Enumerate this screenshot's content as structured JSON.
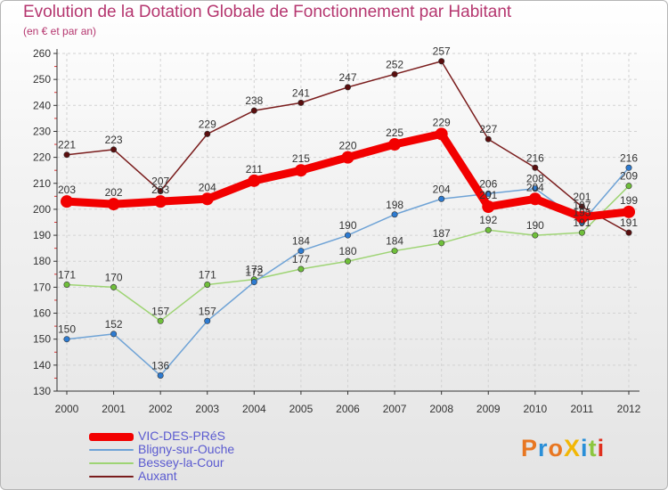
{
  "chart_data": {
    "type": "line",
    "title": "Evolution de la Dotation Globale de Fonctionnement par Habitant",
    "subtitle": "(en € et par an)",
    "categories": [
      "2000",
      "2001",
      "2002",
      "2003",
      "2004",
      "2005",
      "2006",
      "2007",
      "2008",
      "2009",
      "2010",
      "2011",
      "2012"
    ],
    "yticks": [
      130,
      140,
      150,
      160,
      170,
      180,
      190,
      200,
      210,
      220,
      230,
      240,
      250,
      260
    ],
    "ylim": [
      130,
      260
    ],
    "grid": true,
    "series": [
      {
        "name": "Auxant",
        "color": "#7a1d1d",
        "dot": "#5a0e0e",
        "emphasis": false,
        "values": [
          221,
          223,
          207,
          229,
          238,
          241,
          247,
          252,
          257,
          227,
          216,
          201,
          191
        ]
      },
      {
        "name": "Bessey-la-Cour",
        "color": "#9ed474",
        "dot": "#6fbf3a",
        "emphasis": false,
        "values": [
          171,
          170,
          157,
          171,
          173,
          177,
          180,
          184,
          187,
          192,
          190,
          191,
          209
        ]
      },
      {
        "name": "Bligny-sur-Ouche",
        "color": "#6fa3d6",
        "dot": "#2d7bd1",
        "emphasis": false,
        "values": [
          150,
          152,
          136,
          157,
          172,
          184,
          190,
          198,
          204,
          206,
          208,
          195,
          216
        ]
      },
      {
        "name": "VIC-DES-PRéS",
        "color": "#f20000",
        "dot": "#f20000",
        "emphasis": true,
        "values": [
          203,
          202,
          203,
          204,
          211,
          215,
          220,
          225,
          229,
          201,
          204,
          197,
          199
        ]
      }
    ],
    "legend_order": [
      "VIC-DES-PRéS",
      "Bligny-sur-Ouche",
      "Bessey-la-Cour",
      "Auxant"
    ]
  },
  "logo": {
    "text": "ProXiti",
    "colors": [
      "#e87722",
      "#2a8fd8",
      "#e87722",
      "#f2b705",
      "#2a8fd8",
      "#8cc63f",
      "#e0301e"
    ]
  }
}
